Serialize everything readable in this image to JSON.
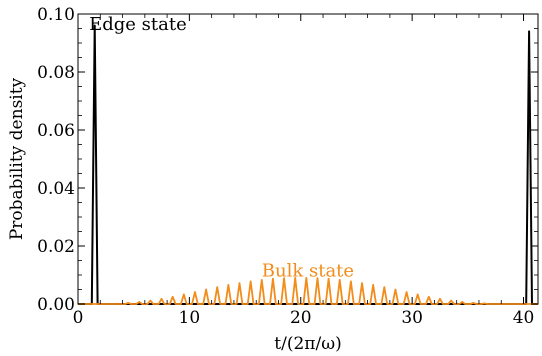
{
  "chart_data": {
    "type": "line",
    "title": "",
    "xlabel": "t/(2π/ω)",
    "ylabel": "Probability density",
    "xlim": [
      0,
      41.3
    ],
    "ylim": [
      0,
      0.1
    ],
    "x_ticks": [
      0,
      10,
      20,
      30,
      40
    ],
    "x_tick_labels": [
      "0",
      "10",
      "20",
      "30",
      "40"
    ],
    "y_ticks": [
      0,
      0.02,
      0.04,
      0.06,
      0.08,
      0.1
    ],
    "y_tick_labels": [
      "0.00",
      "0.02",
      "0.04",
      "0.06",
      "0.08",
      "0.10"
    ],
    "grid": false,
    "series": [
      {
        "color": "#000000",
        "peaks": [
          {
            "x": 1.5,
            "y": 0.096
          },
          {
            "x": 40.5,
            "y": 0.094
          }
        ]
      },
      {
        "color": "#f28c1a",
        "peaks": [
          {
            "x": 4.5,
            "y": 0.0004
          },
          {
            "x": 5.5,
            "y": 0.0007
          },
          {
            "x": 6.5,
            "y": 0.0012
          },
          {
            "x": 7.5,
            "y": 0.0018
          },
          {
            "x": 8.5,
            "y": 0.0025
          },
          {
            "x": 9.5,
            "y": 0.0033
          },
          {
            "x": 10.5,
            "y": 0.0041
          },
          {
            "x": 11.5,
            "y": 0.005
          },
          {
            "x": 12.5,
            "y": 0.0058
          },
          {
            "x": 13.5,
            "y": 0.0066
          },
          {
            "x": 14.5,
            "y": 0.0072
          },
          {
            "x": 15.5,
            "y": 0.0078
          },
          {
            "x": 16.5,
            "y": 0.0083
          },
          {
            "x": 17.5,
            "y": 0.0087
          },
          {
            "x": 18.5,
            "y": 0.0089
          },
          {
            "x": 19.5,
            "y": 0.009
          },
          {
            "x": 20.5,
            "y": 0.009
          },
          {
            "x": 21.5,
            "y": 0.0089
          },
          {
            "x": 22.5,
            "y": 0.0087
          },
          {
            "x": 23.5,
            "y": 0.0083
          },
          {
            "x": 24.5,
            "y": 0.0078
          },
          {
            "x": 25.5,
            "y": 0.0072
          },
          {
            "x": 26.5,
            "y": 0.0066
          },
          {
            "x": 27.5,
            "y": 0.0058
          },
          {
            "x": 28.5,
            "y": 0.005
          },
          {
            "x": 29.5,
            "y": 0.0041
          },
          {
            "x": 30.5,
            "y": 0.0033
          },
          {
            "x": 31.5,
            "y": 0.0025
          },
          {
            "x": 32.5,
            "y": 0.0018
          },
          {
            "x": 33.5,
            "y": 0.0012
          },
          {
            "x": 34.5,
            "y": 0.0007
          },
          {
            "x": 35.5,
            "y": 0.0004
          },
          {
            "x": 36.5,
            "y": 0.0002
          }
        ]
      }
    ],
    "annotations": [
      {
        "text": "Edge state",
        "x": 1.0,
        "y": 0.0965,
        "color": "#000000"
      },
      {
        "text": "Bulk state",
        "x": 16.5,
        "y": 0.0115,
        "color": "#f28c1a"
      }
    ]
  }
}
